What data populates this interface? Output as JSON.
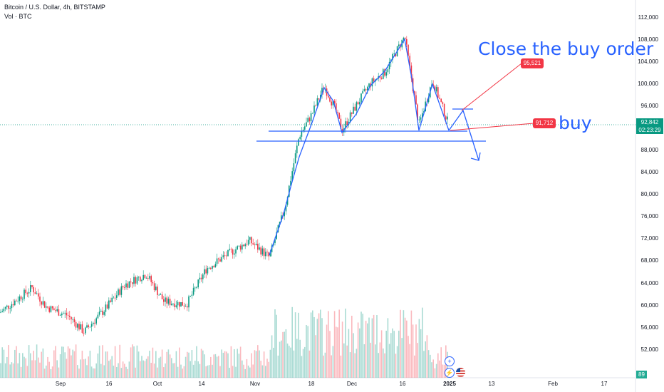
{
  "legend": {
    "title": "Bitcoin / U.S. Dollar, 4h, BITSTAMP",
    "volume": "Vol · BTC"
  },
  "annotations": {
    "close_text": "Close the buy order",
    "buy_text": "buy",
    "sell_tag": "95,521",
    "buy_tag": "91,712"
  },
  "price_axis": {
    "labels": [
      "112,000",
      "108,000",
      "104,000",
      "100,000",
      "96,000",
      "88,000",
      "84,000",
      "80,000",
      "76,000",
      "72,000",
      "68,000",
      "64,000",
      "60,000",
      "56,000",
      "52,000"
    ],
    "values": [
      112000,
      108000,
      104000,
      100000,
      96000,
      88000,
      84000,
      80000,
      76000,
      72000,
      68000,
      64000,
      60000,
      56000,
      52000
    ],
    "current_price": "92,842",
    "countdown": "02:23:29",
    "volume_value": "89"
  },
  "time_axis": {
    "labels": [
      "Sep",
      "16",
      "Oct",
      "14",
      "Nov",
      "18",
      "Dec",
      "16",
      "2025",
      "13",
      "Feb",
      "17"
    ]
  },
  "colors": {
    "up": "#089981",
    "down": "#f23645",
    "drawing": "#2962ff",
    "target_line": "#f23645"
  },
  "icons": [
    "plus-icon",
    "lightning-icon",
    "us-flag-icon"
  ]
}
